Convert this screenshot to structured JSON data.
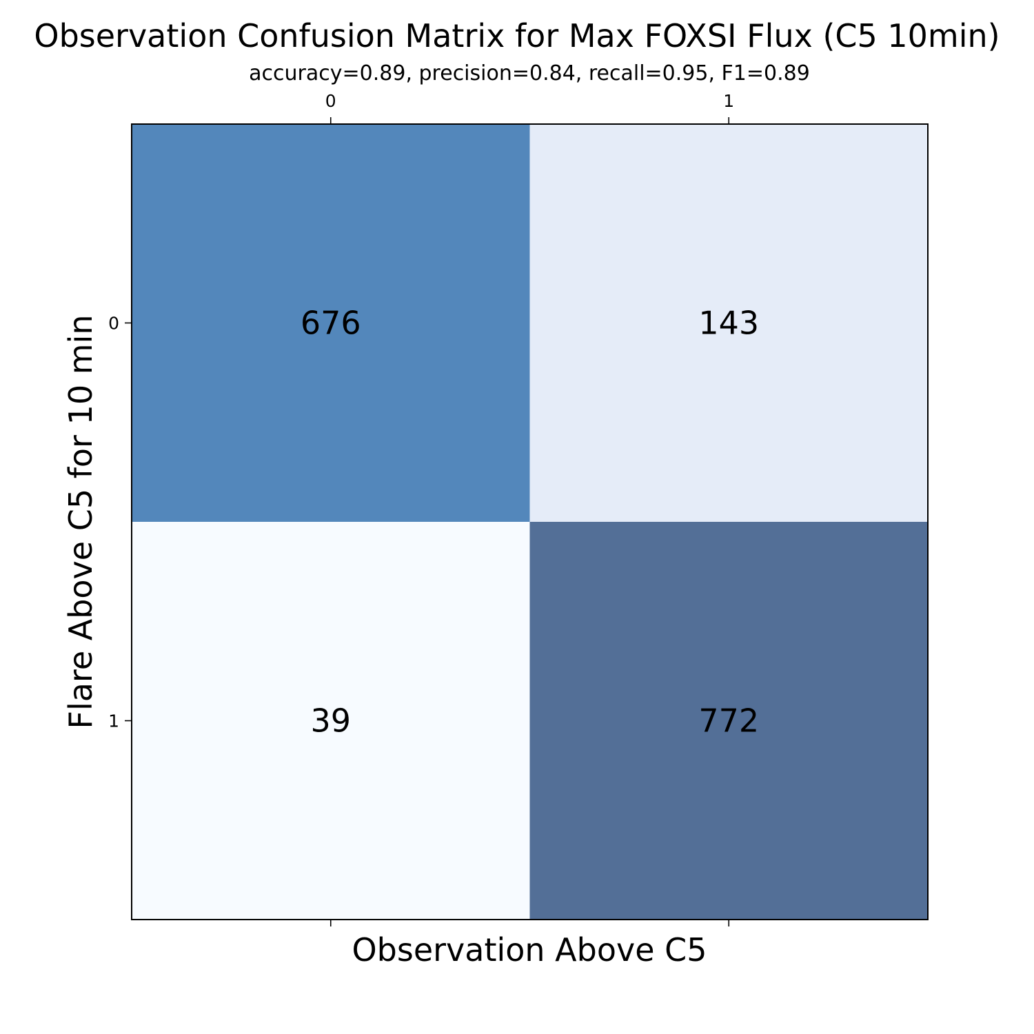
{
  "chart_data": {
    "type": "heatmap",
    "title": "Observation Confusion Matrix for Max FOXSI Flux (C5 10min)",
    "subtitle": "accuracy=0.89, precision=0.84, recall=0.95, F1=0.89",
    "xlabel": "Observation Above C5",
    "ylabel": "Flare Above C5 for 10 min",
    "x_categories": [
      "0",
      "1"
    ],
    "y_categories": [
      "0",
      "1"
    ],
    "values": [
      [
        676,
        143
      ],
      [
        39,
        772
      ]
    ],
    "cell_labels": [
      [
        "676",
        "143"
      ],
      [
        "39",
        "772"
      ]
    ],
    "cell_colors": [
      [
        "#5387bb",
        "#e5ecf8"
      ],
      [
        "#f7fbff",
        "#536f97"
      ]
    ],
    "x_ticks_position": "top",
    "grid": false
  }
}
